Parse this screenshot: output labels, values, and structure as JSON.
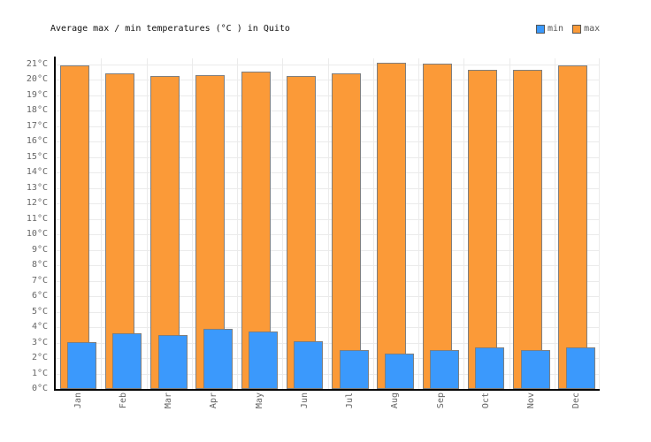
{
  "header": {
    "title": "Average max / min temperatures (°C ) in Quito"
  },
  "chart_data": {
    "type": "bar",
    "title": "Average max / min temperatures (°C ) in Quito",
    "categories": [
      "Jan",
      "Feb",
      "Mar",
      "Apr",
      "May",
      "Jun",
      "Jul",
      "Aug",
      "Sep",
      "Oct",
      "Nov",
      "Dec"
    ],
    "series": [
      {
        "name": "min",
        "color": "#3b99fc",
        "values": [
          3.0,
          3.6,
          3.5,
          3.9,
          3.7,
          3.1,
          2.5,
          2.3,
          2.5,
          2.7,
          2.5,
          2.7
        ]
      },
      {
        "name": "max",
        "color": "#fb9a38",
        "values": [
          20.9,
          20.4,
          20.2,
          20.3,
          20.5,
          20.2,
          20.4,
          21.1,
          21.0,
          20.6,
          20.6,
          20.9
        ]
      }
    ],
    "xlabel": "",
    "ylabel": "",
    "ytick_unit": "°C",
    "ytick_min": 0,
    "ytick_max": 21,
    "ytick_step": 1,
    "ylim": [
      0,
      21.37
    ],
    "grid": true,
    "legend_position": "top-right",
    "bar_border_color": "#7f7f7f",
    "axis_color": "#000000",
    "grid_color": "#ebebeb",
    "tick_label_color": "#666666"
  }
}
